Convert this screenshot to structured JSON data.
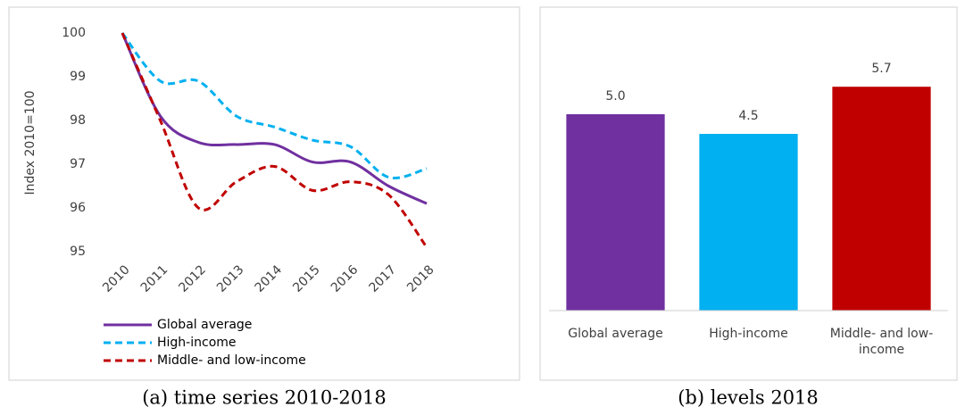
{
  "chart_data": [
    {
      "type": "line",
      "caption": "(a) time series 2010-2018",
      "ylabel": "Index 2010=100",
      "categories": [
        "2010",
        "2011",
        "2012",
        "2013",
        "2014",
        "2015",
        "2016",
        "2017",
        "2018"
      ],
      "series": [
        {
          "name": "Global average",
          "color": "#7030a0",
          "dash": false,
          "values": [
            100,
            98.1,
            97.5,
            97.45,
            97.45,
            97.05,
            97.05,
            96.5,
            96.1
          ]
        },
        {
          "name": "High-income",
          "color": "#00b0f0",
          "dash": true,
          "values": [
            100,
            98.9,
            98.9,
            98.1,
            97.85,
            97.55,
            97.4,
            96.7,
            96.9
          ]
        },
        {
          "name": "Middle- and low-income",
          "color": "#c00000",
          "dash": true,
          "values": [
            100,
            98.0,
            96.0,
            96.6,
            96.95,
            96.4,
            96.6,
            96.3,
            95.1
          ]
        }
      ],
      "ylim": [
        95,
        100
      ],
      "yticks": [
        95,
        96,
        97,
        98,
        99,
        100
      ],
      "legend": "bottom"
    },
    {
      "type": "bar",
      "caption": "(b) levels 2018",
      "categories": [
        "Global average",
        "High-income",
        "Middle- and low-income"
      ],
      "values": [
        5.0,
        4.5,
        5.7
      ],
      "value_labels": [
        "5.0",
        "4.5",
        "5.7"
      ],
      "colors": [
        "#7030a0",
        "#00b0f0",
        "#c00000"
      ],
      "ylim": [
        0,
        7
      ]
    }
  ]
}
